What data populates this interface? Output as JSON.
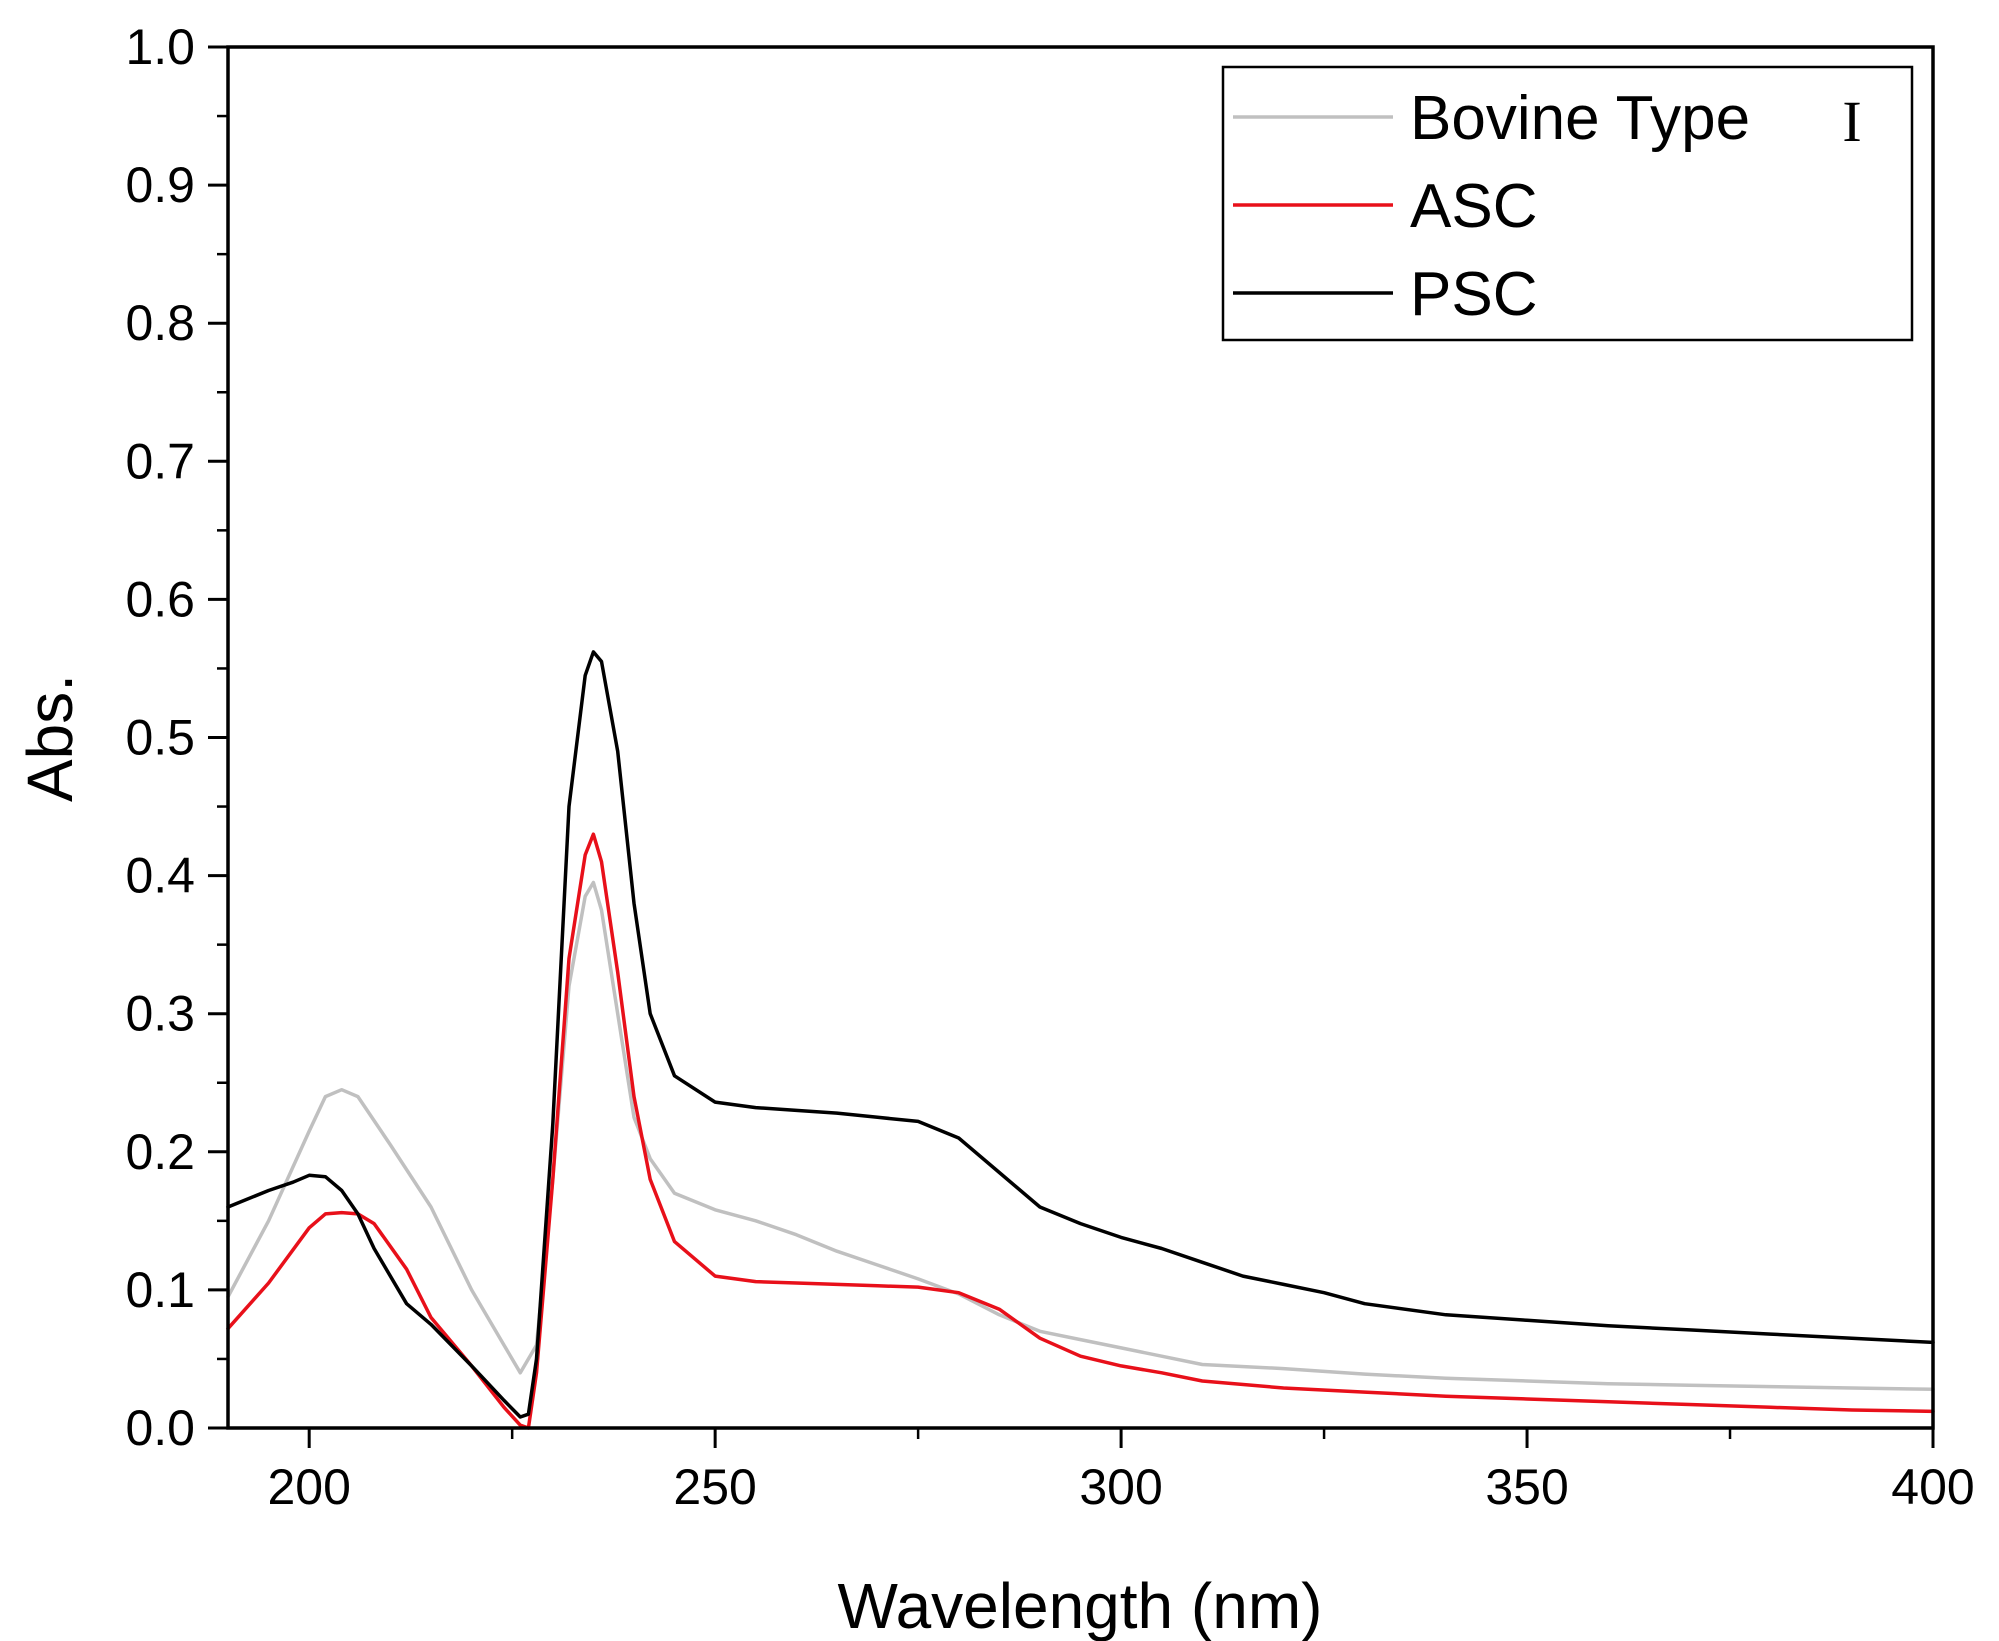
{
  "chart_data": {
    "type": "line",
    "title": "",
    "xlabel": "Wavelength (nm)",
    "ylabel": "Abs.",
    "xlim": [
      190,
      400
    ],
    "ylim": [
      0.0,
      1.0
    ],
    "xticks": [
      200,
      250,
      300,
      350,
      400
    ],
    "xtick_labels": [
      "200",
      "250",
      "300",
      "350",
      "400"
    ],
    "yticks": [
      0.0,
      0.1,
      0.2,
      0.3,
      0.4,
      0.5,
      0.6,
      0.7,
      0.8,
      0.9,
      1.0
    ],
    "ytick_labels": [
      "0.0",
      "0.1",
      "0.2",
      "0.3",
      "0.4",
      "0.5",
      "0.6",
      "0.7",
      "0.8",
      "0.9",
      "1.0"
    ],
    "grid": false,
    "legend_position": "top-right",
    "series": [
      {
        "name": "Bovine Type",
        "name_suffix": "I",
        "color": "#c0c0c0",
        "x": [
          190,
          195,
          200,
          202,
          204,
          206,
          210,
          215,
          220,
          224,
          226,
          228,
          230,
          232,
          234,
          235,
          236,
          238,
          240,
          242,
          245,
          250,
          255,
          260,
          265,
          270,
          275,
          280,
          285,
          290,
          295,
          300,
          305,
          310,
          320,
          330,
          340,
          350,
          360,
          370,
          380,
          390,
          400
        ],
        "y": [
          0.095,
          0.15,
          0.215,
          0.24,
          0.245,
          0.24,
          0.205,
          0.16,
          0.1,
          0.06,
          0.04,
          0.06,
          0.18,
          0.32,
          0.385,
          0.395,
          0.375,
          0.3,
          0.225,
          0.195,
          0.17,
          0.158,
          0.15,
          0.14,
          0.128,
          0.118,
          0.108,
          0.097,
          0.082,
          0.07,
          0.064,
          0.058,
          0.052,
          0.046,
          0.043,
          0.039,
          0.036,
          0.034,
          0.032,
          0.031,
          0.03,
          0.029,
          0.028
        ]
      },
      {
        "name": "ASC",
        "color": "#e8101a",
        "x": [
          190,
          195,
          200,
          202,
          204,
          206,
          208,
          212,
          215,
          220,
          224,
          226,
          227,
          228,
          230,
          232,
          234,
          235,
          236,
          238,
          240,
          242,
          245,
          250,
          255,
          260,
          265,
          270,
          275,
          280,
          285,
          290,
          295,
          300,
          305,
          310,
          320,
          330,
          340,
          350,
          360,
          370,
          380,
          390,
          400
        ],
        "y": [
          0.072,
          0.105,
          0.145,
          0.155,
          0.156,
          0.155,
          0.148,
          0.115,
          0.08,
          0.045,
          0.015,
          0.002,
          0.0,
          0.04,
          0.18,
          0.34,
          0.415,
          0.43,
          0.41,
          0.33,
          0.24,
          0.18,
          0.135,
          0.11,
          0.106,
          0.105,
          0.104,
          0.103,
          0.102,
          0.098,
          0.086,
          0.065,
          0.052,
          0.045,
          0.04,
          0.034,
          0.029,
          0.026,
          0.023,
          0.021,
          0.019,
          0.017,
          0.015,
          0.013,
          0.012
        ]
      },
      {
        "name": "PSC",
        "color": "#000000",
        "x": [
          190,
          195,
          198,
          200,
          202,
          204,
          206,
          208,
          212,
          215,
          220,
          224,
          226,
          227,
          228,
          230,
          232,
          234,
          235,
          236,
          238,
          240,
          242,
          245,
          250,
          255,
          260,
          265,
          270,
          275,
          280,
          285,
          290,
          295,
          300,
          305,
          310,
          315,
          320,
          325,
          330,
          340,
          350,
          360,
          370,
          380,
          390,
          400
        ],
        "y": [
          0.16,
          0.172,
          0.178,
          0.183,
          0.182,
          0.172,
          0.155,
          0.13,
          0.09,
          0.075,
          0.045,
          0.02,
          0.008,
          0.01,
          0.05,
          0.22,
          0.45,
          0.545,
          0.562,
          0.555,
          0.49,
          0.38,
          0.3,
          0.255,
          0.236,
          0.232,
          0.23,
          0.228,
          0.225,
          0.222,
          0.21,
          0.185,
          0.16,
          0.148,
          0.138,
          0.13,
          0.12,
          0.11,
          0.104,
          0.098,
          0.09,
          0.082,
          0.078,
          0.074,
          0.071,
          0.068,
          0.065,
          0.062
        ]
      }
    ]
  }
}
